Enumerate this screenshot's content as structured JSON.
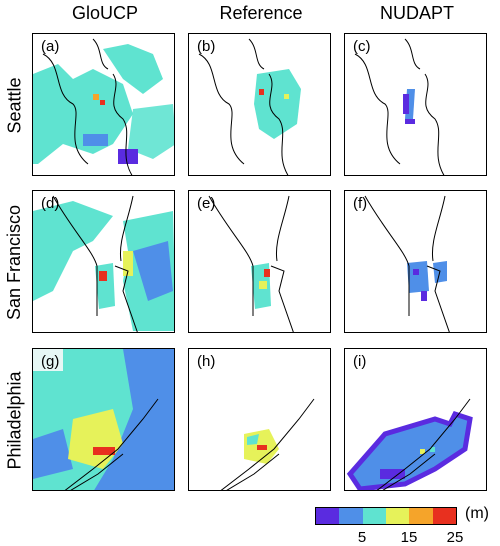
{
  "columns": [
    "GloUCP",
    "Reference",
    "NUDAPT"
  ],
  "rows": [
    "Seattle",
    "San Francisco",
    "Philadelphia"
  ],
  "panel_labels": [
    "(a)",
    "(b)",
    "(c)",
    "(d)",
    "(e)",
    "(f)",
    "(g)",
    "(h)",
    "(i)"
  ],
  "legend": {
    "colors": [
      "#5a2be0",
      "#4f8fe8",
      "#5fe3d0",
      "#e6f25a",
      "#f5a42a",
      "#e8301f"
    ],
    "tick_labels": [
      "5",
      "15",
      "25"
    ],
    "unit": "(m)"
  }
}
